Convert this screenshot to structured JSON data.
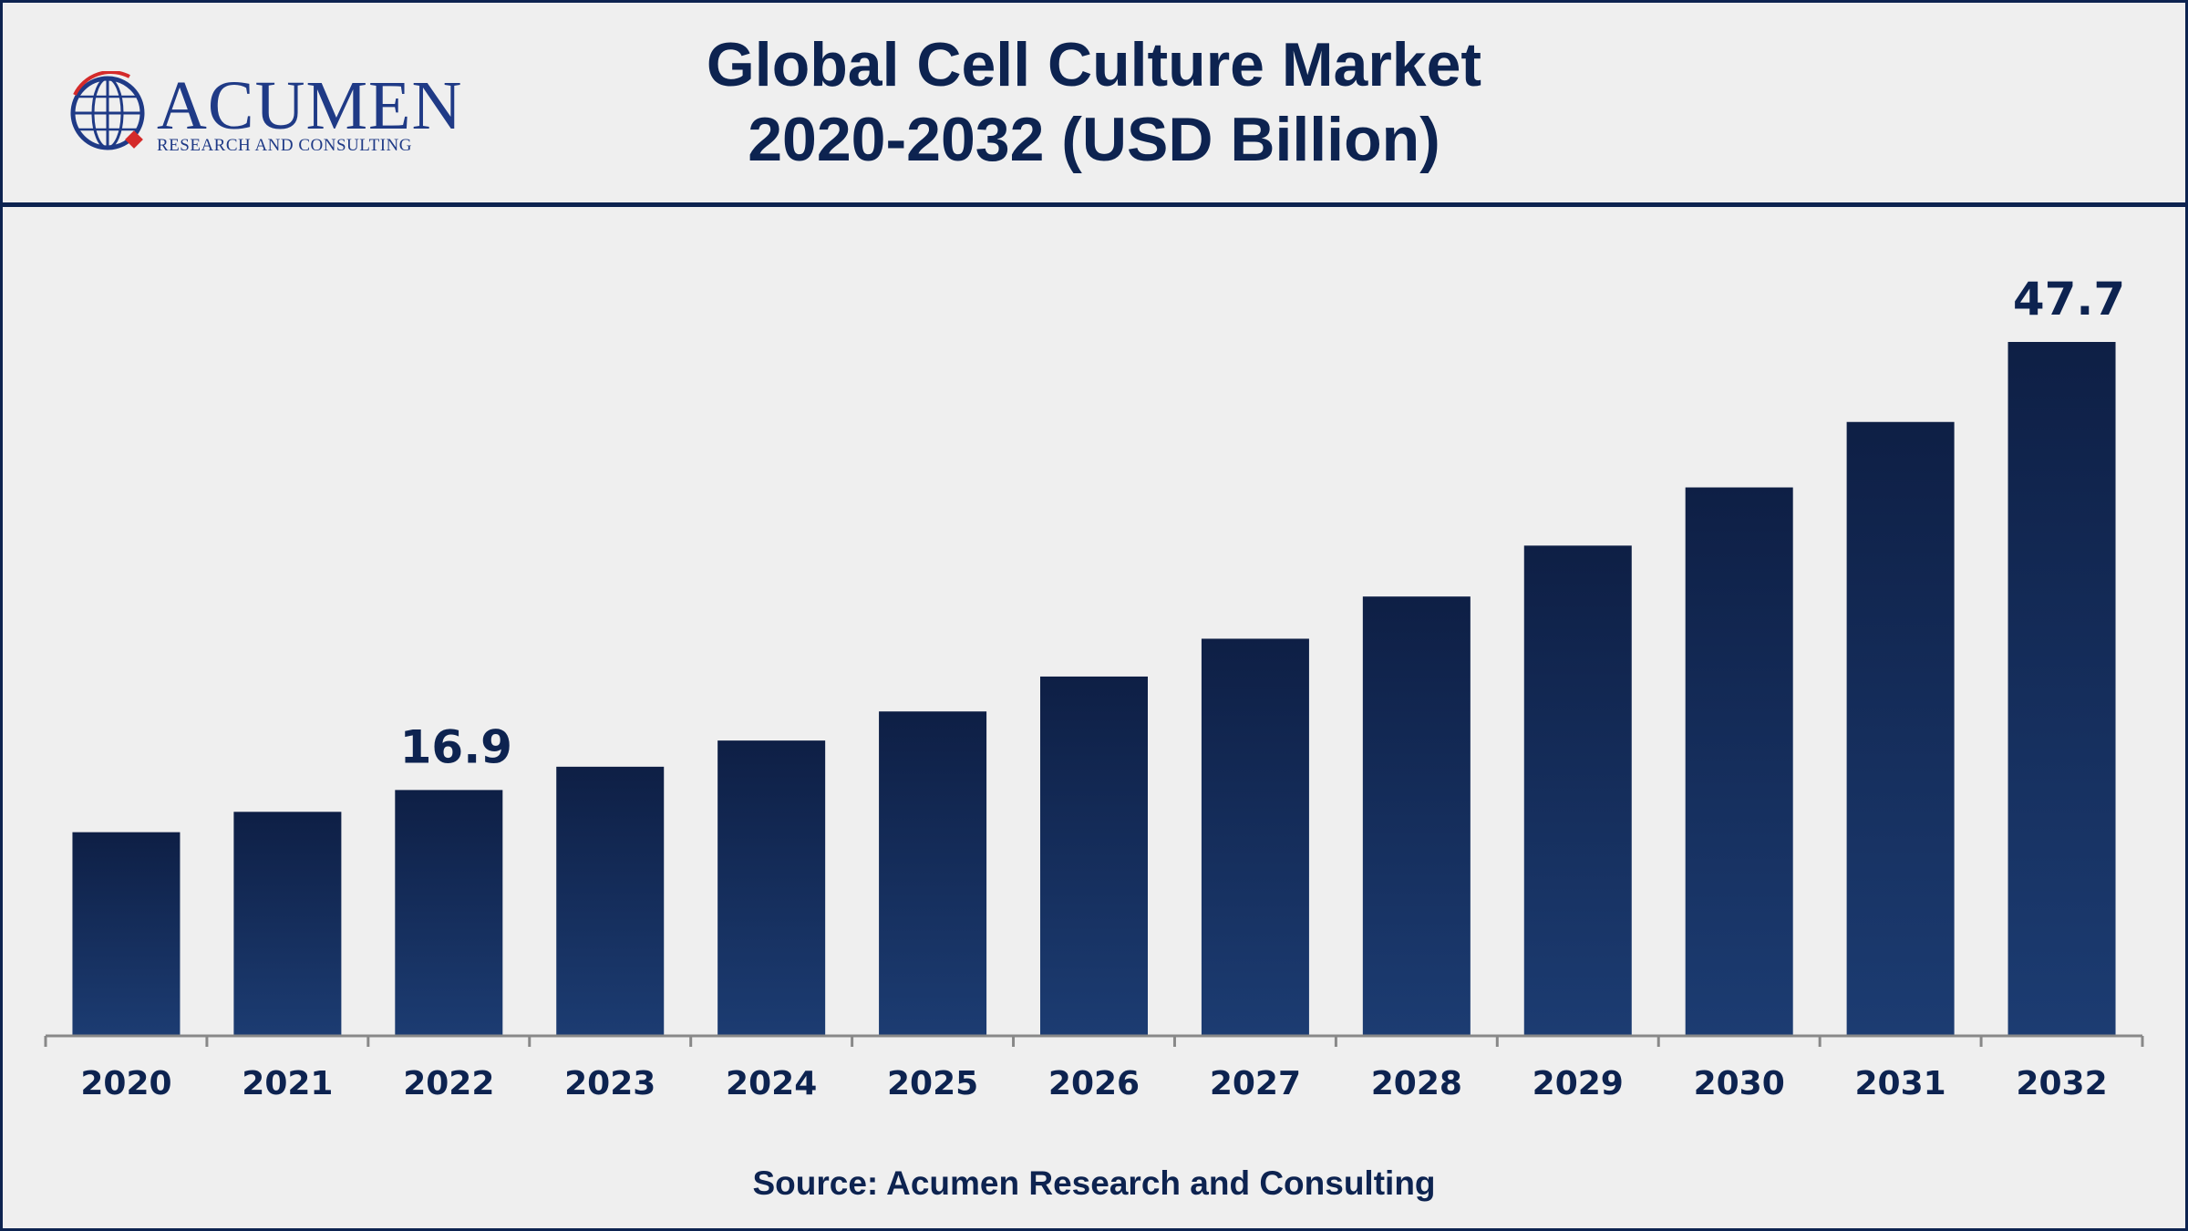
{
  "branding": {
    "logo_word": "ACUMEN",
    "logo_subtitle": "RESEARCH AND CONSULTING"
  },
  "title_lines": [
    "Global Cell Culture Market",
    "2020-2032 (USD Billion)"
  ],
  "source": "Source: Acumen Research and Consulting",
  "colors": {
    "bar_top": "#0e1f45",
    "bar_bottom": "#1c3c72",
    "text": "#0d2350",
    "axis": "#888888",
    "background": "#efefef"
  },
  "chart_data": {
    "type": "bar",
    "title": "Global Cell Culture Market 2020-2032 (USD Billion)",
    "categories": [
      "2020",
      "2021",
      "2022",
      "2023",
      "2024",
      "2025",
      "2026",
      "2027",
      "2028",
      "2029",
      "2030",
      "2031",
      "2032"
    ],
    "values": [
      14.0,
      15.4,
      16.9,
      18.5,
      20.3,
      22.3,
      24.7,
      27.3,
      30.2,
      33.7,
      37.7,
      42.2,
      47.7
    ],
    "data_labels": [
      {
        "category": "2022",
        "text": "16.9"
      },
      {
        "category": "2032",
        "text": "47.7"
      }
    ],
    "ylim": [
      0,
      52
    ],
    "grid": false,
    "legend": "none"
  }
}
